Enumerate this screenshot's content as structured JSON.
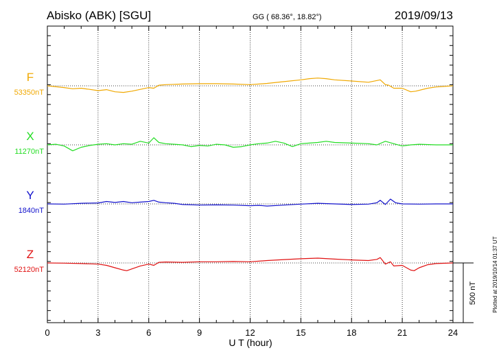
{
  "header": {
    "station": "Abisko (ABK)  [SGU]",
    "coords": "GG ( 68.36°,  18.82°)",
    "date": "2019/09/13"
  },
  "footer": {
    "plotted_note": "Plotted at 2019/10/14 01:37 UT",
    "scale_label": "500 nT"
  },
  "colors": {
    "F": "#f0a800",
    "X": "#22dd22",
    "Y": "#1010cc",
    "Z": "#e01010"
  },
  "chart_data": {
    "type": "line",
    "title": "Abisko (ABK)  [SGU]",
    "xlabel": "U T (hour)",
    "ylabel": "",
    "xlim": [
      0,
      24
    ],
    "x_ticks": [
      0,
      3,
      6,
      9,
      12,
      15,
      18,
      21,
      24
    ],
    "x_tick_labels": [
      "0",
      "3",
      "6",
      "9",
      "12",
      "15",
      "18",
      "21",
      "24"
    ],
    "grid": "vertical dotted at every 3 hours",
    "scale_bar_nT": 500,
    "series": [
      {
        "name": "F",
        "baseline_label": "53350nT",
        "baseline": 53350,
        "x": [
          0,
          1,
          1.5,
          2,
          2.5,
          3,
          3.5,
          4,
          4.5,
          5,
          5.5,
          6,
          6.3,
          6.6,
          7,
          8,
          9,
          10,
          11,
          12,
          13,
          14,
          15,
          15.5,
          16,
          16.5,
          17,
          18,
          19,
          19.7,
          20,
          20.2,
          20.5,
          21,
          21.5,
          21.8,
          22.5,
          23,
          24
        ],
        "values": [
          53350,
          53335,
          53325,
          53330,
          53320,
          53310,
          53318,
          53300,
          53295,
          53305,
          53320,
          53335,
          53330,
          53355,
          53360,
          53365,
          53368,
          53368,
          53365,
          53360,
          53370,
          53385,
          53400,
          53410,
          53415,
          53410,
          53400,
          53390,
          53380,
          53400,
          53360,
          53355,
          53330,
          53330,
          53300,
          53305,
          53330,
          53340,
          53350
        ]
      },
      {
        "name": "X",
        "baseline_label": "11270nT",
        "baseline": 11270,
        "x": [
          0,
          0.5,
          1,
          1.5,
          2,
          2.5,
          3,
          3.5,
          4,
          4.5,
          5,
          5.5,
          6,
          6.3,
          6.6,
          7,
          7.5,
          8,
          8.5,
          9,
          9.5,
          10,
          10.5,
          11,
          11.5,
          12,
          12.5,
          13,
          13.5,
          14,
          14.5,
          15,
          15.5,
          16,
          16.5,
          17,
          18,
          19,
          19.5,
          20,
          20.5,
          21,
          21.5,
          22,
          23,
          24
        ],
        "values": [
          11270,
          11275,
          11260,
          11220,
          11250,
          11265,
          11275,
          11280,
          11270,
          11280,
          11275,
          11300,
          11285,
          11330,
          11290,
          11280,
          11275,
          11270,
          11255,
          11265,
          11260,
          11275,
          11270,
          11250,
          11255,
          11270,
          11280,
          11285,
          11300,
          11285,
          11255,
          11280,
          11285,
          11290,
          11300,
          11290,
          11285,
          11280,
          11270,
          11300,
          11280,
          11260,
          11270,
          11275,
          11270,
          11270
        ]
      },
      {
        "name": "Y",
        "baseline_label": "1840nT",
        "baseline": 1840,
        "x": [
          0,
          1,
          2,
          3,
          3.5,
          4,
          4.5,
          5,
          5.5,
          6,
          6.3,
          6.6,
          7,
          7.5,
          8,
          9,
          10,
          11,
          12,
          12.5,
          13,
          14,
          15,
          16,
          17,
          18,
          19,
          19.5,
          19.7,
          20,
          20.3,
          20.6,
          21,
          22,
          23,
          24
        ],
        "values": [
          1840,
          1838,
          1845,
          1848,
          1860,
          1852,
          1860,
          1850,
          1855,
          1860,
          1870,
          1855,
          1850,
          1845,
          1835,
          1830,
          1832,
          1830,
          1825,
          1828,
          1822,
          1830,
          1838,
          1845,
          1840,
          1835,
          1838,
          1850,
          1870,
          1835,
          1880,
          1850,
          1840,
          1838,
          1840,
          1840
        ]
      },
      {
        "name": "Z",
        "baseline_label": "52120nT",
        "baseline": 52120,
        "x": [
          0,
          1,
          2,
          3,
          3.5,
          4,
          4.5,
          4.7,
          5,
          5.5,
          6,
          6.3,
          6.6,
          7,
          8,
          9,
          10,
          11,
          12,
          13,
          14,
          15,
          16,
          17,
          18,
          19,
          19.5,
          19.7,
          20,
          20.3,
          20.5,
          21,
          21.5,
          21.7,
          22,
          22.5,
          23,
          24
        ],
        "values": [
          52120,
          52118,
          52115,
          52110,
          52100,
          52080,
          52060,
          52055,
          52070,
          52095,
          52110,
          52100,
          52125,
          52128,
          52125,
          52130,
          52130,
          52132,
          52130,
          52140,
          52148,
          52155,
          52160,
          52152,
          52145,
          52140,
          52150,
          52165,
          52110,
          52130,
          52095,
          52100,
          52060,
          52055,
          52080,
          52105,
          52115,
          52120
        ]
      }
    ]
  }
}
